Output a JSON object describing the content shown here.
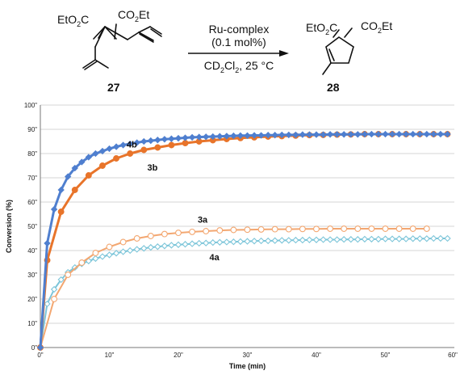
{
  "scheme": {
    "reactant_left_group": "EtO",
    "reactant_left_sub": "2",
    "reactant_left_tail": "C",
    "reactant_right_group": "CO",
    "reactant_right_sub": "2",
    "reactant_right_tail": "Et",
    "reactant_number": "27",
    "catalyst": "Ru-complex",
    "loading": "(0.1 mol%)",
    "solvent_a": "CD",
    "solvent_sub1": "2",
    "solvent_b": "Cl",
    "solvent_sub2": "2",
    "solvent_c": ", 25 °C",
    "product_left_group": "EtO",
    "product_left_sub": "2",
    "product_left_tail": "C",
    "product_right_group": "CO",
    "product_right_sub": "2",
    "product_right_tail": "Et",
    "product_number": "28"
  },
  "chart_data": {
    "type": "line",
    "xlabel": "Time (min)",
    "ylabel": "Conversion (%)",
    "xlim": [
      0,
      60
    ],
    "ylim": [
      0,
      100
    ],
    "x_ticks": [
      "0\"",
      "10\"",
      "20\"",
      "30\"",
      "40\"",
      "50\"",
      "60\""
    ],
    "y_ticks": [
      "0\"",
      "10\"",
      "20\"",
      "30\"",
      "40\"",
      "50\"",
      "60\"",
      "70\"",
      "80\"",
      "90\"",
      "100\""
    ],
    "grid": "horizontal",
    "series": [
      {
        "name": "4b",
        "color": "#4f7fcf",
        "marker": "diamond-filled",
        "x": [
          0,
          1,
          2,
          3,
          4,
          5,
          6,
          7,
          8,
          9,
          10,
          11,
          12,
          13,
          14,
          15,
          16,
          17,
          18,
          19,
          20,
          21,
          22,
          23,
          24,
          25,
          26,
          27,
          28,
          29,
          30,
          31,
          32,
          33,
          34,
          35,
          36,
          37,
          38,
          39,
          40,
          41,
          42,
          43,
          44,
          45,
          46,
          47,
          48,
          49,
          50,
          51,
          52,
          53,
          54,
          55,
          56,
          57,
          58,
          59
        ],
        "values": [
          0,
          43,
          57,
          65,
          70.5,
          74,
          76.5,
          78.5,
          80,
          81,
          82,
          82.8,
          83.5,
          84,
          84.5,
          85,
          85.3,
          85.6,
          85.9,
          86.1,
          86.3,
          86.5,
          86.7,
          86.8,
          86.9,
          87,
          87.1,
          87.2,
          87.3,
          87.4,
          87.4,
          87.5,
          87.5,
          87.6,
          87.6,
          87.7,
          87.7,
          87.7,
          87.8,
          87.8,
          87.8,
          87.8,
          87.9,
          87.9,
          87.9,
          87.9,
          87.9,
          88,
          88,
          88,
          88,
          88,
          88,
          88,
          88,
          88,
          88,
          88,
          88,
          88
        ]
      },
      {
        "name": "3b",
        "color": "#e8742a",
        "marker": "circle-filled",
        "x": [
          0,
          1,
          3,
          5,
          7,
          9,
          11,
          13,
          15,
          17,
          19,
          21,
          23,
          25,
          27,
          29,
          31,
          33,
          35,
          37,
          39,
          41,
          43,
          45,
          47,
          49,
          51,
          53,
          55,
          57,
          59
        ],
        "values": [
          0,
          36,
          56,
          65,
          71,
          75,
          78,
          80,
          81.5,
          82.5,
          83.5,
          84.3,
          85,
          85.5,
          86,
          86.4,
          86.7,
          87,
          87.2,
          87.4,
          87.6,
          87.7,
          87.8,
          87.9,
          88,
          88,
          88,
          88,
          88,
          88,
          88
        ]
      },
      {
        "name": "3a",
        "color": "#f3a771",
        "marker": "circle-open",
        "x": [
          0,
          2,
          4,
          6,
          8,
          10,
          12,
          14,
          16,
          18,
          20,
          22,
          24,
          26,
          28,
          30,
          32,
          34,
          36,
          38,
          40,
          42,
          44,
          46,
          48,
          50,
          52,
          54,
          56
        ],
        "values": [
          0,
          20,
          30,
          35,
          39,
          41.5,
          43.5,
          45,
          46,
          46.8,
          47.3,
          47.7,
          48,
          48.3,
          48.5,
          48.6,
          48.7,
          48.8,
          48.8,
          48.9,
          48.9,
          49,
          49,
          49,
          49,
          49,
          49,
          49,
          49
        ]
      },
      {
        "name": "4a",
        "color": "#7cc5d9",
        "marker": "diamond-open",
        "x": [
          0,
          1,
          2,
          3,
          4,
          5,
          6,
          7,
          8,
          9,
          10,
          11,
          12,
          13,
          14,
          15,
          16,
          17,
          18,
          19,
          20,
          21,
          22,
          23,
          24,
          25,
          26,
          27,
          28,
          29,
          30,
          31,
          32,
          33,
          34,
          35,
          36,
          37,
          38,
          39,
          40,
          41,
          42,
          43,
          44,
          45,
          46,
          47,
          48,
          49,
          50,
          51,
          52,
          53,
          54,
          55,
          56,
          57,
          58,
          59
        ],
        "values": [
          0,
          18,
          24,
          28,
          31,
          33,
          34.5,
          35.7,
          36.7,
          37.5,
          38.2,
          38.9,
          39.5,
          40,
          40.5,
          40.9,
          41.3,
          41.6,
          41.9,
          42.2,
          42.4,
          42.6,
          42.8,
          43,
          43.1,
          43.3,
          43.4,
          43.5,
          43.6,
          43.7,
          43.8,
          43.9,
          44,
          44,
          44.1,
          44.2,
          44.2,
          44.3,
          44.3,
          44.4,
          44.4,
          44.5,
          44.5,
          44.5,
          44.6,
          44.6,
          44.6,
          44.7,
          44.7,
          44.7,
          44.8,
          44.8,
          44.8,
          44.8,
          44.9,
          44.9,
          44.9,
          45,
          45,
          45
        ]
      }
    ]
  }
}
